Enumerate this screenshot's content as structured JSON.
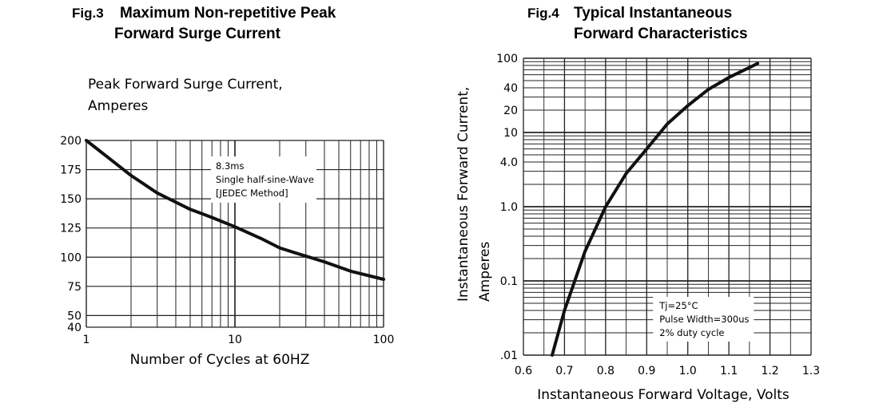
{
  "chart_data": [
    {
      "type": "line",
      "fig": "Fig.3",
      "title_line1": "Maximum Non-repetitive Peak",
      "title_line2": "Forward Surge Current",
      "ylabel_line1": "Peak Forward Surge Current,",
      "ylabel_line2": "Amperes",
      "xlabel": "Number of Cycles at 60HZ",
      "x_scale": "log",
      "xlim": [
        1,
        100
      ],
      "ylim": [
        40,
        200
      ],
      "x_ticks": [
        "1",
        "10",
        "100"
      ],
      "y_ticks": [
        "200",
        "175",
        "150",
        "125",
        "100",
        "75",
        "50",
        "40"
      ],
      "grid": true,
      "annotation": [
        "8.3ms",
        "Single half-sine-Wave",
        "[JEDEC Method]"
      ],
      "series": [
        {
          "x": [
            1,
            2,
            3,
            5,
            7,
            10,
            15,
            20,
            25,
            40,
            60,
            100
          ],
          "y": [
            200,
            170,
            155,
            141,
            134,
            126,
            116,
            108,
            104,
            96,
            88,
            81
          ]
        }
      ]
    },
    {
      "type": "line",
      "fig": "Fig.4",
      "title_line1": "Typical Instantaneous",
      "title_line2": "Forward Characteristics",
      "ylabel_line1": "Instantaneous Forward Current,",
      "ylabel_line2": "Amperes",
      "xlabel": "Instantaneous Forward  Voltage, Volts",
      "y_scale": "log",
      "xlim": [
        0.6,
        1.3
      ],
      "ylim": [
        0.01,
        100
      ],
      "x_ticks": [
        "0.6",
        "0.7",
        "0.8",
        "0.9",
        "1.0",
        "1.1",
        "1.2",
        "1.3"
      ],
      "y_ticks": [
        "100",
        "40",
        "20",
        "10",
        "4.0",
        "1.0",
        "0.1",
        ".01"
      ],
      "grid": true,
      "annotation": [
        "Tj=25°C",
        "Pulse Width=300us",
        "2% duty cycle"
      ],
      "series": [
        {
          "x": [
            0.67,
            0.7,
            0.75,
            0.8,
            0.85,
            0.9,
            0.95,
            1.0,
            1.05,
            1.1,
            1.15,
            1.17
          ],
          "y": [
            0.01,
            0.04,
            0.25,
            1.0,
            2.8,
            6.0,
            13,
            23,
            38,
            55,
            75,
            85
          ]
        }
      ]
    }
  ]
}
